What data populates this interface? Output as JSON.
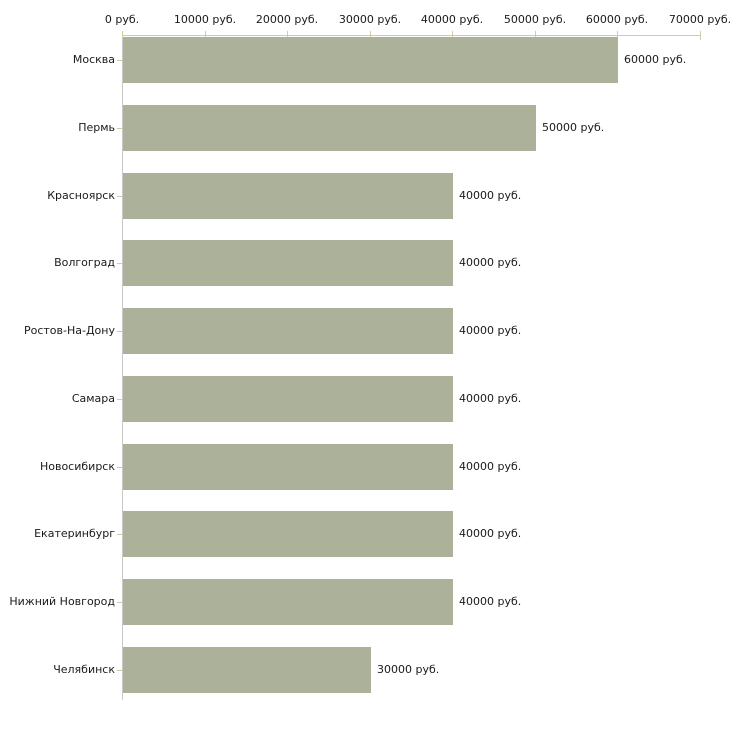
{
  "chart_data": {
    "type": "bar",
    "orientation": "horizontal",
    "title": "",
    "unit": "руб.",
    "categories": [
      "Москва",
      "Пермь",
      "Красноярск",
      "Волгоград",
      "Ростов-На-Дону",
      "Самара",
      "Новосибирск",
      "Екатеринбург",
      "Нижний Новгород",
      "Челябинск"
    ],
    "values": [
      60000,
      50000,
      40000,
      40000,
      40000,
      40000,
      40000,
      40000,
      40000,
      30000
    ],
    "value_labels": [
      "60000 руб.",
      "50000 руб.",
      "40000 руб.",
      "40000 руб.",
      "40000 руб.",
      "40000 руб.",
      "40000 руб.",
      "40000 руб.",
      "40000 руб.",
      "30000 руб."
    ],
    "x_axis": {
      "position": "top",
      "range": [
        0,
        70000
      ],
      "ticks": [
        0,
        10000,
        20000,
        30000,
        40000,
        50000,
        60000,
        70000
      ],
      "tick_labels": [
        "0 руб.",
        "10000 руб.",
        "20000 руб.",
        "30000 руб.",
        "40000 руб.",
        "50000 руб.",
        "60000 руб.",
        "70000 руб."
      ]
    },
    "grid": false,
    "legend": false,
    "colors": {
      "bar": "#acb299",
      "axis_line": "#c8c8c8",
      "tick_mark": "#cfcca6",
      "text": "#1a1a1a",
      "background": "#ffffff"
    }
  }
}
